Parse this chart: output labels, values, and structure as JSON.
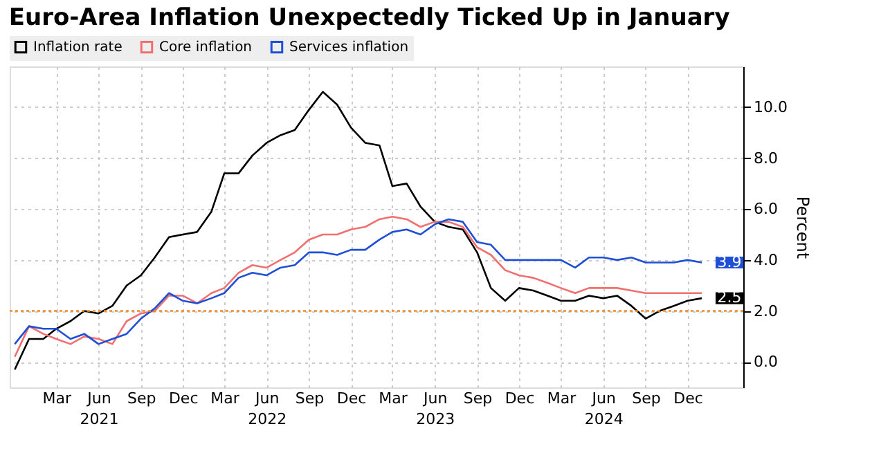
{
  "chart_data": {
    "type": "line",
    "title": "Euro-Area Inflation Unexpectedly Ticked Up in January",
    "ylabel": "Percent",
    "x": [
      "2020-12",
      "2021-01",
      "2021-02",
      "2021-03",
      "2021-04",
      "2021-05",
      "2021-06",
      "2021-07",
      "2021-08",
      "2021-09",
      "2021-10",
      "2021-11",
      "2021-12",
      "2022-01",
      "2022-02",
      "2022-03",
      "2022-04",
      "2022-05",
      "2022-06",
      "2022-07",
      "2022-08",
      "2022-09",
      "2022-10",
      "2022-11",
      "2022-12",
      "2023-01",
      "2023-02",
      "2023-03",
      "2023-04",
      "2023-05",
      "2023-06",
      "2023-07",
      "2023-08",
      "2023-09",
      "2023-10",
      "2023-11",
      "2023-12",
      "2024-01",
      "2024-02",
      "2024-03",
      "2024-04",
      "2024-05",
      "2024-06",
      "2024-07",
      "2024-08",
      "2024-09",
      "2024-10",
      "2024-11",
      "2024-12",
      "2025-01"
    ],
    "series": [
      {
        "name": "Inflation rate",
        "color": "#000000",
        "values": [
          -0.3,
          0.9,
          0.9,
          1.3,
          1.6,
          2.0,
          1.9,
          2.2,
          3.0,
          3.4,
          4.1,
          4.9,
          5.0,
          5.1,
          5.9,
          7.4,
          7.4,
          8.1,
          8.6,
          8.9,
          9.1,
          9.9,
          10.6,
          10.1,
          9.2,
          8.6,
          8.5,
          6.9,
          7.0,
          6.1,
          5.5,
          5.3,
          5.2,
          4.3,
          2.9,
          2.4,
          2.9,
          2.8,
          2.6,
          2.4,
          2.4,
          2.6,
          2.5,
          2.6,
          2.2,
          1.7,
          2.0,
          2.2,
          2.4,
          2.5
        ],
        "value_labels": [
          null,
          null,
          null,
          null,
          null,
          null,
          null,
          null,
          null,
          null,
          null,
          null,
          null,
          null,
          null,
          null,
          null,
          null,
          null,
          null,
          null,
          null,
          null,
          null,
          null,
          null,
          null,
          null,
          null,
          null,
          null,
          null,
          null,
          null,
          null,
          null,
          null,
          null,
          null,
          null,
          null,
          null,
          null,
          null,
          null,
          null,
          null,
          null,
          null,
          "2.5"
        ]
      },
      {
        "name": "Core inflation",
        "color": "#f26f6f",
        "values": [
          0.2,
          1.4,
          1.1,
          0.9,
          0.7,
          1.0,
          0.9,
          0.7,
          1.6,
          1.9,
          2.0,
          2.6,
          2.6,
          2.3,
          2.7,
          2.9,
          3.5,
          3.8,
          3.7,
          4.0,
          4.3,
          4.8,
          5.0,
          5.0,
          5.2,
          5.3,
          5.6,
          5.7,
          5.6,
          5.3,
          5.5,
          5.5,
          5.3,
          4.5,
          4.2,
          3.6,
          3.4,
          3.3,
          3.1,
          2.9,
          2.7,
          2.9,
          2.9,
          2.9,
          2.8,
          2.7,
          2.7,
          2.7,
          2.7,
          2.7
        ]
      },
      {
        "name": "Services inflation",
        "color": "#1f4fd6",
        "values": [
          0.7,
          1.4,
          1.3,
          1.3,
          0.9,
          1.1,
          0.7,
          0.9,
          1.1,
          1.7,
          2.1,
          2.7,
          2.4,
          2.3,
          2.5,
          2.7,
          3.3,
          3.5,
          3.4,
          3.7,
          3.8,
          4.3,
          4.3,
          4.2,
          4.4,
          4.4,
          4.8,
          5.1,
          5.2,
          5.0,
          5.4,
          5.6,
          5.5,
          4.7,
          4.6,
          4.0,
          4.0,
          4.0,
          4.0,
          4.0,
          3.7,
          4.1,
          4.1,
          4.0,
          4.1,
          3.9,
          3.9,
          3.9,
          4.0,
          3.9
        ],
        "value_labels": [
          null,
          null,
          null,
          null,
          null,
          null,
          null,
          null,
          null,
          null,
          null,
          null,
          null,
          null,
          null,
          null,
          null,
          null,
          null,
          null,
          null,
          null,
          null,
          null,
          null,
          null,
          null,
          null,
          null,
          null,
          null,
          null,
          null,
          null,
          null,
          null,
          null,
          null,
          null,
          null,
          null,
          null,
          null,
          null,
          null,
          null,
          null,
          null,
          null,
          "3.9"
        ]
      }
    ],
    "xlim": [
      "2020-11-20",
      "2025-04-01"
    ],
    "xticks": [
      {
        "value": "2021-03",
        "label": "Mar"
      },
      {
        "value": "2021-06",
        "label": "Jun\n2021"
      },
      {
        "value": "2021-09",
        "label": "Sep"
      },
      {
        "value": "2021-12",
        "label": "Dec"
      },
      {
        "value": "2022-03",
        "label": "Mar"
      },
      {
        "value": "2022-06",
        "label": "Jun\n2022"
      },
      {
        "value": "2022-09",
        "label": "Sep"
      },
      {
        "value": "2022-12",
        "label": "Dec"
      },
      {
        "value": "2023-03",
        "label": "Mar"
      },
      {
        "value": "2023-06",
        "label": "Jun\n2023"
      },
      {
        "value": "2023-09",
        "label": "Sep"
      },
      {
        "value": "2023-12",
        "label": "Dec"
      },
      {
        "value": "2024-03",
        "label": "Mar"
      },
      {
        "value": "2024-06",
        "label": "Jun\n2024"
      },
      {
        "value": "2024-09",
        "label": "Sep"
      },
      {
        "value": "2024-12",
        "label": "Dec"
      }
    ],
    "ylim": [
      -1.0,
      11.6
    ],
    "yticks": [
      {
        "value": 0,
        "label": "0.0"
      },
      {
        "value": 2,
        "label": "2.0"
      },
      {
        "value": 4,
        "label": "4.0"
      },
      {
        "value": 6,
        "label": "6.0"
      },
      {
        "value": 8,
        "label": "8.0"
      },
      {
        "value": 10,
        "label": "10.0"
      }
    ],
    "ref_lines": [
      {
        "axis": "y",
        "value": 2.0,
        "color": "#f08a24",
        "line_style": "dotted"
      }
    ],
    "grid": true,
    "legend": "top left",
    "line_style": "solid",
    "marker": "none"
  }
}
